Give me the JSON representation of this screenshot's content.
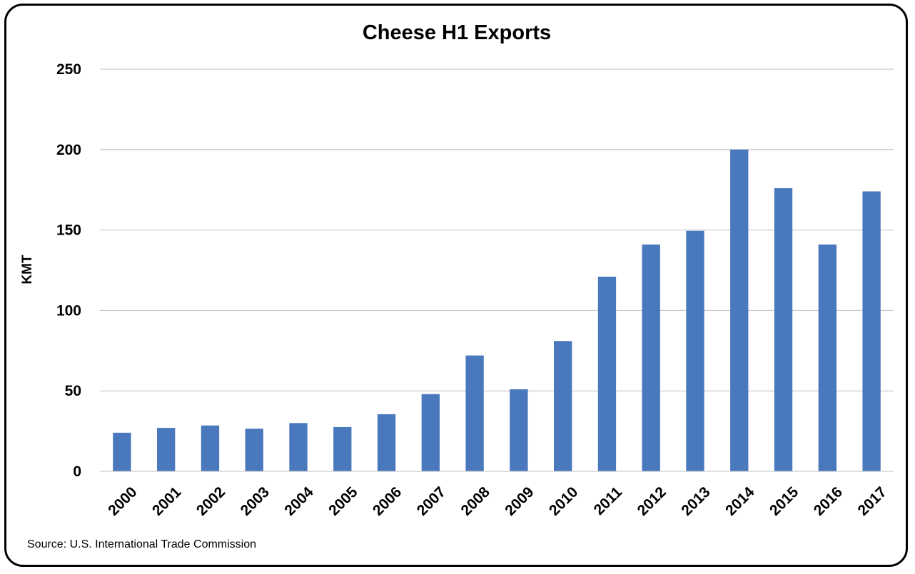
{
  "chart_data": {
    "type": "bar",
    "title": "Cheese H1 Exports",
    "xlabel": "",
    "ylabel": "KMT",
    "ylim": [
      0,
      250
    ],
    "yticks": [
      0,
      50,
      100,
      150,
      200,
      250
    ],
    "grid": true,
    "categories": [
      "2000",
      "2001",
      "2002",
      "2003",
      "2004",
      "2005",
      "2006",
      "2007",
      "2008",
      "2009",
      "2010",
      "2011",
      "2012",
      "2013",
      "2014",
      "2015",
      "2016",
      "2017"
    ],
    "series": [
      {
        "name": "Cheese H1 Exports",
        "color": "#4a78bd",
        "values": [
          24,
          27,
          28.5,
          26.5,
          30,
          27.5,
          35.5,
          48,
          72,
          51,
          81,
          121,
          141,
          149.5,
          200,
          176,
          141,
          174
        ]
      }
    ],
    "source": "Source:  U.S. International Trade Commission"
  }
}
